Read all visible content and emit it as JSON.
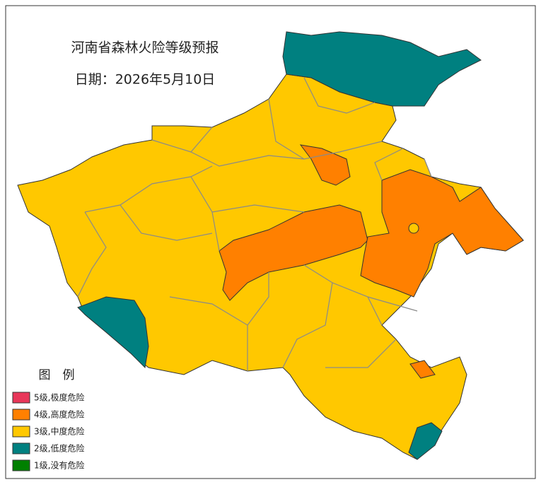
{
  "header": {
    "title": "河南省森林火险等级预报",
    "date": "日期：2026年5月10日"
  },
  "legend": {
    "title": "图　例",
    "items": [
      {
        "label": "5级,极度危险",
        "color": "#e8375a"
      },
      {
        "label": "4级,高度危险",
        "color": "#ff8000"
      },
      {
        "label": "3级,中度危险",
        "color": "#ffc800"
      },
      {
        "label": "2级,低度危险",
        "color": "#008080"
      },
      {
        "label": "1级,没有危险",
        "color": "#008000"
      }
    ]
  }
}
